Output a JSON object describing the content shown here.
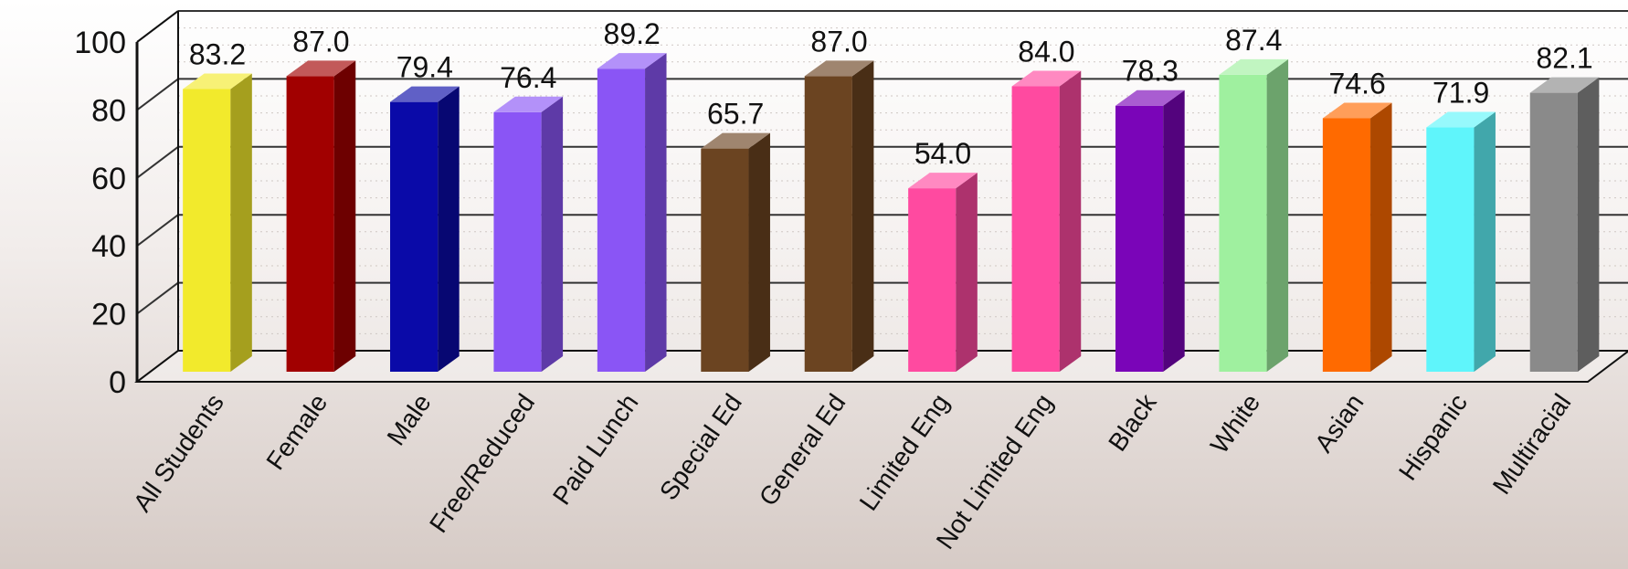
{
  "chart_data": {
    "type": "bar",
    "title": "",
    "xlabel": "",
    "ylabel": "",
    "ylim": [
      0,
      100
    ],
    "yticks": [
      0,
      20,
      40,
      60,
      80,
      100
    ],
    "tick_labels": [
      "0",
      "20",
      "40",
      "60",
      "80",
      "100"
    ],
    "grid": true,
    "categories": [
      "All Students",
      "Female",
      "Male",
      "Free/Reduced",
      "Paid Lunch",
      "Special Ed",
      "General Ed",
      "Limited Eng",
      "Not Limited Eng",
      "Black",
      "White",
      "Asian",
      "Hispanic",
      "Multiracial"
    ],
    "values": [
      83.2,
      87.0,
      79.4,
      76.4,
      89.2,
      65.7,
      87.0,
      54.0,
      84.0,
      78.3,
      87.4,
      74.6,
      71.9,
      82.1
    ],
    "value_labels": [
      "83.2",
      "87.0",
      "79.4",
      "76.4",
      "89.2",
      "65.7",
      "87.0",
      "54.0",
      "84.0",
      "78.3",
      "87.4",
      "74.6",
      "71.9",
      "82.1"
    ],
    "colors": [
      "#f2ea2c",
      "#a10000",
      "#0a0aa8",
      "#8a55f5",
      "#8a55f5",
      "#6b4421",
      "#6b4421",
      "#ff4aa0",
      "#ff4aa0",
      "#7a05b8",
      "#9ff09f",
      "#ff6a00",
      "#5ff5fb",
      "#8a8a8a"
    ]
  }
}
